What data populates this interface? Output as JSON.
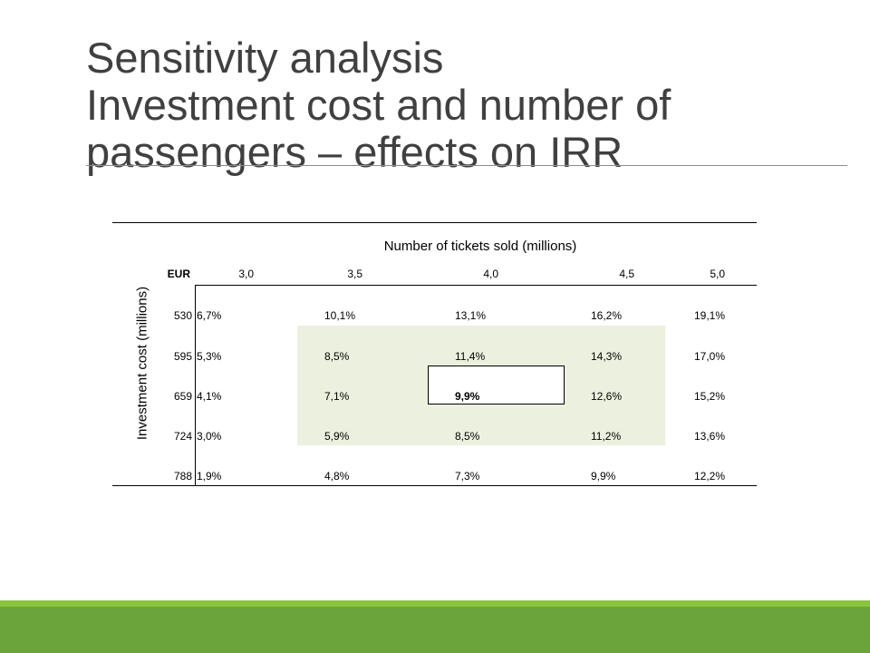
{
  "slide": {
    "title_lines": [
      "Sensitivity analysis",
      "Investment cost and number of",
      "passengers – effects on IRR"
    ]
  },
  "table": {
    "column_title": "Number of tickets sold (millions)",
    "row_title": "Investment cost (millions)",
    "corner_label": "EUR",
    "column_headers": [
      "3,0",
      "3,5",
      "4,0",
      "4,5",
      "5,0"
    ],
    "rows": [
      {
        "label": "530",
        "values": [
          "6,7%",
          "10,1%",
          "13,1%",
          "16,2%",
          "19,1%"
        ]
      },
      {
        "label": "595",
        "values": [
          "5,3%",
          "8,5%",
          "11,4%",
          "14,3%",
          "17,0%"
        ]
      },
      {
        "label": "659",
        "values": [
          "4,1%",
          "7,1%",
          "9,9%",
          "12,6%",
          "15,2%"
        ]
      },
      {
        "label": "724",
        "values": [
          "3,0%",
          "5,9%",
          "8,5%",
          "11,2%",
          "13,6%"
        ]
      },
      {
        "label": "788",
        "values": [
          "1,9%",
          "4,8%",
          "7,3%",
          "9,9%",
          "12,2%"
        ]
      }
    ],
    "highlight_color": "#ebf1de"
  },
  "theme": {
    "footer_light": "#8ac43f",
    "footer_dark": "#6aa43a"
  }
}
